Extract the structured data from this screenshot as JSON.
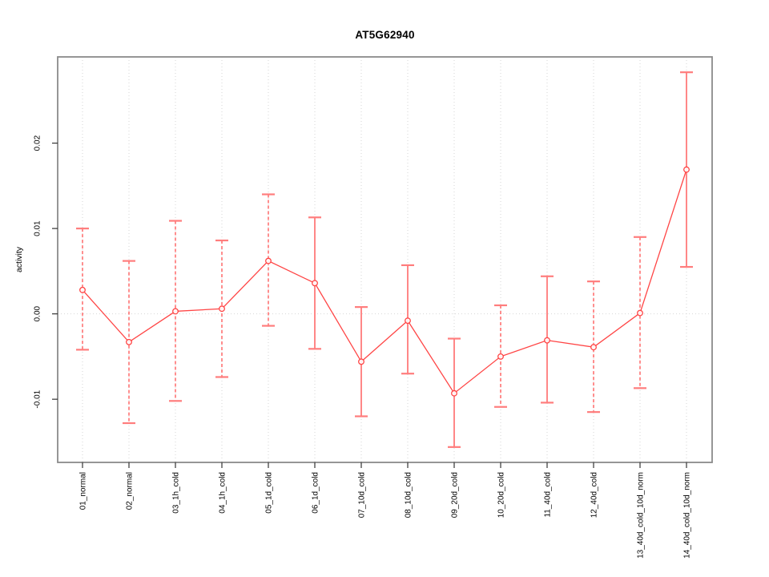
{
  "window": {
    "background": "#ffffff"
  },
  "chart_data": {
    "type": "line",
    "title": "AT5G62940",
    "xlabel": "",
    "ylabel": "activity",
    "categories": [
      "01_normal",
      "02_normal",
      "03_1h_cold",
      "04_1h_cold",
      "05_1d_cold",
      "06_1d_cold",
      "07_10d_cold",
      "08_10d_cold",
      "09_20d_cold",
      "10_20d_cold",
      "11_40d_cold",
      "12_40d_cold",
      "13_40d_cold_10d_norm",
      "14_40d_cold_10d_norm"
    ],
    "series": [
      {
        "name": "activity",
        "values": [
          0.0028,
          -0.0033,
          0.0003,
          0.0006,
          0.0062,
          0.0036,
          -0.0056,
          -0.0008,
          -0.0093,
          -0.005,
          -0.0031,
          -0.0039,
          0.0001,
          0.0169
        ],
        "error_upper": [
          0.01,
          0.0062,
          0.0109,
          0.0086,
          0.014,
          0.0113,
          0.0008,
          0.0057,
          -0.0029,
          0.001,
          0.0044,
          0.0038,
          0.009,
          0.0283
        ],
        "error_lower": [
          -0.0042,
          -0.0128,
          -0.0102,
          -0.0074,
          -0.0014,
          -0.0041,
          -0.012,
          -0.007,
          -0.0156,
          -0.0109,
          -0.0104,
          -0.0115,
          -0.0087,
          0.0055
        ],
        "whisker_styles": [
          "dashed",
          "dashed",
          "dashed",
          "dashed",
          "dashed",
          "solid",
          "solid",
          "solid",
          "solid",
          "dashed",
          "solid",
          "dashed",
          "dashed",
          "solid"
        ]
      }
    ],
    "yticks": [
      -0.01,
      0,
      0.01,
      0.02
    ],
    "ytick_labels": [
      "-0.01",
      "0.00",
      "0.01",
      "0.02"
    ],
    "ylim": [
      -0.0174,
      0.0301
    ],
    "grid": {
      "vertical_dotted": true,
      "zero_line_dotted": true,
      "legend": "none"
    },
    "marker": "open-circle",
    "colors": {
      "line": "#ff4545",
      "point_stroke": "#ff4545",
      "whisker_dashed": "#ff5050",
      "whisker_solid": "#ff8787",
      "whisker_cap": "#ff7d7d",
      "grid": "#d6d6d6",
      "box_border": "#8a8a8a",
      "tick": "#333333",
      "text": "#000000"
    }
  }
}
